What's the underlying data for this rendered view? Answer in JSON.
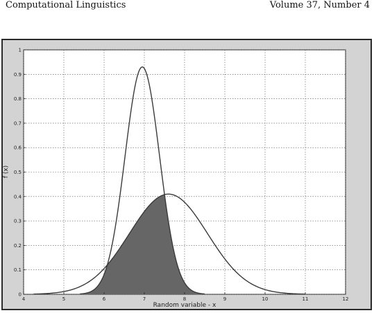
{
  "header": {
    "left": "Computational Linguistics",
    "right": "Volume 37, Number 4"
  },
  "chart_data": {
    "type": "line",
    "title": "",
    "xlabel": "Random variable - x",
    "ylabel": "f (x)",
    "xlim": [
      4,
      12
    ],
    "ylim": [
      0,
      1
    ],
    "xticks": [
      "4",
      "5",
      "6",
      "7",
      "8",
      "9",
      "10",
      "11",
      "12"
    ],
    "yticks": [
      "0",
      "0.1",
      "0.2",
      "0.3",
      "0.4",
      "0.5",
      "0.6",
      "0.7",
      "0.8",
      "0.9",
      "1"
    ],
    "grid": true,
    "series": [
      {
        "mean": 6.95,
        "std": 0.43,
        "peak": 0.93,
        "x_range": [
          5.4,
          8.5
        ]
      },
      {
        "mean": 7.6,
        "std": 0.97,
        "peak": 0.41,
        "x_range": [
          4.25,
          11.0
        ]
      }
    ],
    "shaded_overlap": true,
    "shade_color": "#666666",
    "line_color": "#3a3a3a"
  }
}
